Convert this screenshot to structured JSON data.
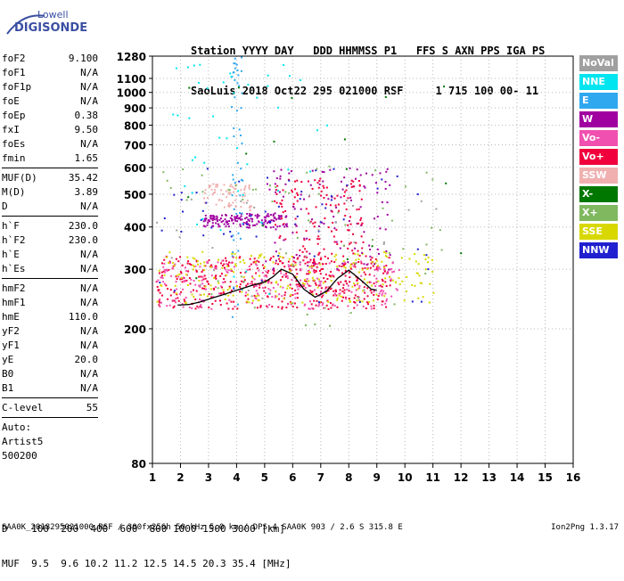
{
  "logo": {
    "line1": "Lowell",
    "line2": "DIGISONDE"
  },
  "header": {
    "line1": "Station YYYY DAY   DDD HHMMSS P1   FFS S AXN PPS IGA PS",
    "line2": "SaoLuis 2018 Oct22 295 021000 RSF     1 715 100 00- 11"
  },
  "params_group1": [
    {
      "name": "foF2",
      "value": "9.100"
    },
    {
      "name": "foF1",
      "value": "N/A"
    },
    {
      "name": "foF1p",
      "value": "N/A"
    },
    {
      "name": "foE",
      "value": "N/A"
    },
    {
      "name": "foEp",
      "value": "0.38"
    },
    {
      "name": "fxI",
      "value": "9.50"
    },
    {
      "name": "foEs",
      "value": "N/A"
    },
    {
      "name": "fmin",
      "value": "1.65"
    }
  ],
  "params_group2": [
    {
      "name": "MUF(D)",
      "value": "35.42"
    },
    {
      "name": "M(D)",
      "value": "3.89"
    },
    {
      "name": "D",
      "value": "N/A"
    }
  ],
  "params_group3": [
    {
      "name": "h`F",
      "value": "230.0"
    },
    {
      "name": "h`F2",
      "value": "230.0"
    },
    {
      "name": "h`E",
      "value": "N/A"
    },
    {
      "name": "h`Es",
      "value": "N/A"
    }
  ],
  "params_group4": [
    {
      "name": "hmF2",
      "value": "N/A"
    },
    {
      "name": "hmF1",
      "value": "N/A"
    },
    {
      "name": "hmE",
      "value": "110.0"
    },
    {
      "name": "yF2",
      "value": "N/A"
    },
    {
      "name": "yF1",
      "value": "N/A"
    },
    {
      "name": "yE",
      "value": "20.0"
    },
    {
      "name": "B0",
      "value": "N/A"
    },
    {
      "name": "B1",
      "value": "N/A"
    }
  ],
  "params_group5": [
    {
      "name": "C-level",
      "value": "55"
    }
  ],
  "autoscaling": [
    "Auto:",
    "Artist5",
    "500200"
  ],
  "legend": [
    {
      "label": "NoVal",
      "color": "#a0a0a0"
    },
    {
      "label": "NNE",
      "color": "#00e5f0"
    },
    {
      "label": "E",
      "color": "#30a8f0"
    },
    {
      "label": "W",
      "color": "#a000a0"
    },
    {
      "label": "Vo-",
      "color": "#f050b0"
    },
    {
      "label": "Vo+",
      "color": "#f0003c"
    },
    {
      "label": "SSW",
      "color": "#f0b0b0"
    },
    {
      "label": "X-",
      "color": "#007800"
    },
    {
      "label": "X+",
      "color": "#80b860"
    },
    {
      "label": "SSE",
      "color": "#d8d800"
    },
    {
      "label": "NNW",
      "color": "#2020d0"
    }
  ],
  "muf_table": {
    "line1": "D    100  200  400  600  800 1000 1500 3000 [km]",
    "line2": "MUF  9.5  9.6 10.2 11.2 12.5 14.5 20.3 35.4 [MHz]"
  },
  "footer": {
    "left": "SAA0K_2018295021000.RSF / 300fx256h 50 kHz 5.0 km / DPS-4 SAA0K 903 / 2.6 S 315.8 E",
    "right": "Ion2Png 1.3.17"
  },
  "chart_data": {
    "type": "scatter",
    "x_ticks": [
      1,
      2,
      3,
      4,
      5,
      6,
      7,
      8,
      9,
      10,
      11,
      12,
      13,
      14,
      15,
      16
    ],
    "y_ticks": [
      80,
      200,
      300,
      400,
      500,
      600,
      700,
      800,
      900,
      1000,
      1100,
      1280
    ],
    "xlim": [
      1,
      16
    ],
    "ylim": [
      80,
      1280
    ],
    "grid": true,
    "trace": {
      "x": [
        1.9,
        2.3,
        2.7,
        3.1,
        3.5,
        4.0,
        4.5,
        5.0,
        5.3,
        5.6,
        6.0,
        6.4,
        6.8,
        7.2,
        7.6,
        8.0,
        8.4,
        8.8,
        9.0
      ],
      "y": [
        235,
        236,
        240,
        246,
        252,
        260,
        268,
        275,
        285,
        300,
        290,
        262,
        248,
        258,
        282,
        298,
        280,
        262,
        260
      ]
    },
    "clusters": [
      {
        "color_key": "Vo+",
        "x": [
          1.1,
          9.5
        ],
        "y": [
          230,
          330
        ],
        "n": 420
      },
      {
        "color_key": "Vo-",
        "x": [
          1.1,
          9.8
        ],
        "y": [
          230,
          320
        ],
        "n": 260
      },
      {
        "color_key": "SSE",
        "x": [
          1.1,
          11.0
        ],
        "y": [
          240,
          340
        ],
        "n": 220
      },
      {
        "color_key": "W",
        "x": [
          2.8,
          5.8
        ],
        "y": [
          400,
          440
        ],
        "n": 160
      },
      {
        "color_key": "W",
        "x": [
          5.0,
          9.5
        ],
        "y": [
          300,
          600
        ],
        "n": 110
      },
      {
        "color_key": "Vo+",
        "x": [
          5.3,
          8.5
        ],
        "y": [
          260,
          560
        ],
        "n": 160
      },
      {
        "color_key": "SSW",
        "x": [
          2.8,
          4.5
        ],
        "y": [
          450,
          540
        ],
        "n": 70
      },
      {
        "color_key": "NNW",
        "x": [
          1.1,
          11.0
        ],
        "y": [
          240,
          600
        ],
        "n": 60
      },
      {
        "color_key": "X+",
        "x": [
          1.1,
          11.5
        ],
        "y": [
          200,
          620
        ],
        "n": 60
      },
      {
        "color_key": "E",
        "x": [
          3.8,
          4.2
        ],
        "y": [
          200,
          1280
        ],
        "n": 50
      },
      {
        "color_key": "NNE",
        "x": [
          1.5,
          7.5
        ],
        "y": [
          250,
          1250
        ],
        "n": 45
      },
      {
        "color_key": "X-",
        "x": [
          1.5,
          12.0
        ],
        "y": [
          150,
          1150
        ],
        "n": 16
      },
      {
        "color_key": "NoVal",
        "x": [
          1.1,
          11.5
        ],
        "y": [
          240,
          500
        ],
        "n": 30
      }
    ]
  }
}
